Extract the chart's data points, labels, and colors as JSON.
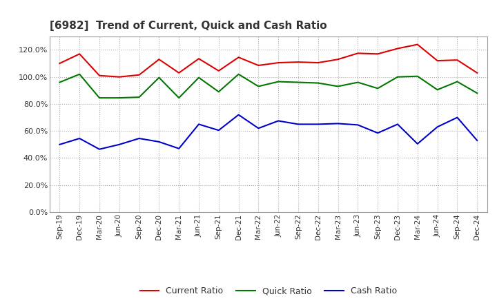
{
  "title": "[6982]  Trend of Current, Quick and Cash Ratio",
  "labels": [
    "Sep-19",
    "Dec-19",
    "Mar-20",
    "Jun-20",
    "Sep-20",
    "Dec-20",
    "Mar-21",
    "Jun-21",
    "Sep-21",
    "Dec-21",
    "Mar-22",
    "Jun-22",
    "Sep-22",
    "Dec-22",
    "Mar-23",
    "Jun-23",
    "Sep-23",
    "Dec-23",
    "Mar-24",
    "Jun-24",
    "Sep-24",
    "Dec-24"
  ],
  "current_ratio": [
    110.0,
    117.0,
    101.0,
    100.0,
    101.5,
    113.0,
    103.0,
    113.5,
    104.5,
    114.5,
    108.5,
    110.5,
    111.0,
    110.5,
    113.0,
    117.5,
    117.0,
    121.0,
    124.0,
    112.0,
    112.5,
    103.0
  ],
  "quick_ratio": [
    96.0,
    102.0,
    84.5,
    84.5,
    85.0,
    99.5,
    84.5,
    99.5,
    89.0,
    102.0,
    93.0,
    96.5,
    96.0,
    95.5,
    93.0,
    96.0,
    91.5,
    100.0,
    100.5,
    90.5,
    96.5,
    88.0
  ],
  "cash_ratio": [
    50.0,
    54.5,
    46.5,
    50.0,
    54.5,
    52.0,
    47.0,
    65.0,
    60.5,
    72.0,
    62.0,
    67.5,
    65.0,
    65.0,
    65.5,
    64.5,
    58.5,
    65.0,
    50.5,
    63.0,
    70.0,
    53.0
  ],
  "current_color": "#DD0000",
  "quick_color": "#007700",
  "cash_color": "#0000CC",
  "background_color": "#FFFFFF",
  "plot_bg_color": "#FFFFFF",
  "ylim": [
    0,
    130
  ],
  "yticks": [
    0,
    20,
    40,
    60,
    80,
    100,
    120
  ],
  "grid_color": "#AAAAAA",
  "title_color": "#333333",
  "tick_color": "#333333",
  "legend_labels": [
    "Current Ratio",
    "Quick Ratio",
    "Cash Ratio"
  ]
}
